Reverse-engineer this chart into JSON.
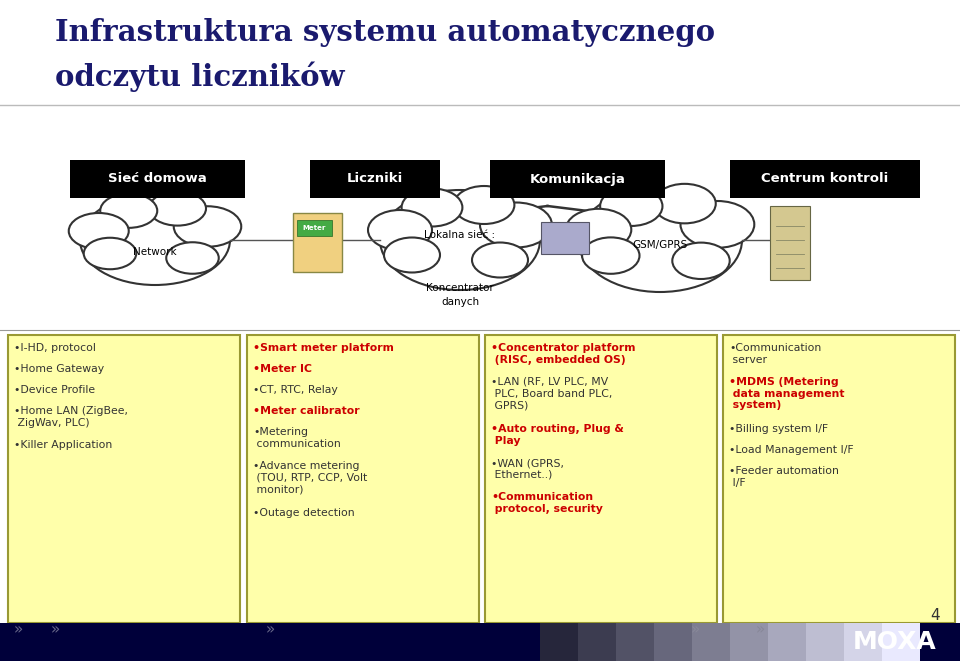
{
  "title_line1": "Infrastruktura systemu automatycznego",
  "title_line2": "odczytu liczników",
  "title_color": "#1a1a6e",
  "bg_color": "#ffffff",
  "header_labels": [
    "Sieć domowa",
    "Liczniki",
    "Komunikacja",
    "Centrum kontroli"
  ],
  "footer_bg": "#00003a",
  "page_number": "4",
  "col1_items": [
    [
      "I-HD, protocol",
      false
    ],
    [
      "Home Gateway",
      false
    ],
    [
      "Device Profile",
      false
    ],
    [
      "Home LAN (ZigBee,\n ZigWav, PLC)",
      false
    ],
    [
      "Killer Application",
      false
    ]
  ],
  "col2_items": [
    [
      "Smart meter platform",
      true
    ],
    [
      "Meter IC",
      true
    ],
    [
      "CT, RTC, Relay",
      false
    ],
    [
      "Meter calibrator",
      true
    ],
    [
      "Metering\n communication",
      false
    ],
    [
      "Advance metering\n (TOU, RTP, CCP, Volt\n monitor)",
      false
    ],
    [
      "Outage detection",
      false
    ]
  ],
  "col3_items": [
    [
      "Concentrator platform\n (RISC, embedded OS)",
      true
    ],
    [
      "LAN (RF, LV PLC, MV\n PLC, Board band PLC,\n GPRS)",
      false
    ],
    [
      "Auto routing, Plug &\n Play",
      true
    ],
    [
      "WAN (GPRS,\n Ethernet..)",
      false
    ],
    [
      "Communication\n protocol, security",
      true
    ]
  ],
  "col4_items": [
    [
      "Communication\n server",
      false
    ],
    [
      "MDMS (Metering\n data management\n system)",
      true
    ],
    [
      "Billing system I/F",
      false
    ],
    [
      "Load Management I/F",
      false
    ],
    [
      "Feeder automation\n I/F",
      false
    ]
  ],
  "box_fill": "#ffffaa",
  "box_edge": "#999933",
  "bold_color": "#cc0000",
  "normal_color": "#333333"
}
